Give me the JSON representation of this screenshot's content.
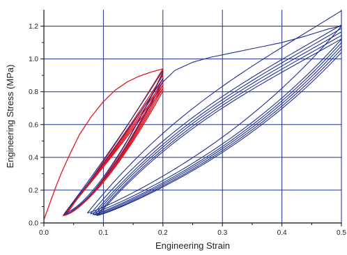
{
  "chart_data": {
    "type": "line",
    "title": "",
    "xlabel": "Engineering Strain",
    "ylabel": "Engineering Stress (MPa)",
    "xlim": [
      0.0,
      0.5
    ],
    "ylim": [
      0.0,
      1.3
    ],
    "x_ticks": [
      "0.0",
      "0.1",
      "0.2",
      "0.3",
      "0.4",
      "0.5"
    ],
    "y_ticks": [
      "0.0",
      "0.2",
      "0.4",
      "0.6",
      "0.8",
      "1.0",
      "1.2"
    ],
    "grid": true,
    "gridColor": "#1f2f8f",
    "series": [
      {
        "color": "#e8141c",
        "strokeWidth": 1.3,
        "kind": "loading-first",
        "points": [
          [
            0.0,
            0.02
          ],
          [
            0.01,
            0.12
          ],
          [
            0.02,
            0.22
          ],
          [
            0.03,
            0.31
          ],
          [
            0.045,
            0.43
          ],
          [
            0.06,
            0.54
          ],
          [
            0.08,
            0.65
          ],
          [
            0.1,
            0.74
          ],
          [
            0.12,
            0.81
          ],
          [
            0.14,
            0.86
          ],
          [
            0.16,
            0.895
          ],
          [
            0.18,
            0.92
          ],
          [
            0.2,
            0.94
          ]
        ]
      },
      {
        "color": "#e8141c",
        "strokeWidth": 1.3,
        "kind": "hysteresis",
        "loops": [
          {
            "peak": 0.94,
            "base": 0.055,
            "minX": 0.038
          },
          {
            "peak": 0.9,
            "base": 0.05,
            "minX": 0.036
          },
          {
            "peak": 0.88,
            "base": 0.048,
            "minX": 0.035
          },
          {
            "peak": 0.86,
            "base": 0.046,
            "minX": 0.034
          },
          {
            "peak": 0.84,
            "base": 0.045,
            "minX": 0.033
          },
          {
            "peak": 0.82,
            "base": 0.044,
            "minX": 0.032
          }
        ],
        "maxX": 0.2
      },
      {
        "color": "#1f2f8f",
        "strokeWidth": 1.1,
        "kind": "hysteresis",
        "loops": [
          {
            "peak": 0.93,
            "base": 0.06,
            "minX": 0.035
          },
          {
            "peak": 0.88,
            "base": 0.05,
            "minX": 0.033
          }
        ],
        "maxX": 0.2
      },
      {
        "color": "#1f2f8f",
        "strokeWidth": 1.1,
        "kind": "loading-second",
        "points": [
          [
            0.2,
            0.86
          ],
          [
            0.22,
            0.93
          ],
          [
            0.25,
            0.98
          ],
          [
            0.28,
            1.01
          ],
          [
            0.32,
            1.04
          ],
          [
            0.36,
            1.07
          ],
          [
            0.4,
            1.1
          ],
          [
            0.44,
            1.14
          ],
          [
            0.48,
            1.185
          ],
          [
            0.5,
            1.2
          ]
        ]
      },
      {
        "color": "#1f2f8f",
        "strokeWidth": 1.1,
        "kind": "large-hysteresis",
        "loops": [
          {
            "peak": 1.2,
            "base": 0.06,
            "minX": 0.073
          },
          {
            "peak": 1.12,
            "base": 0.055,
            "minX": 0.078
          },
          {
            "peak": 1.1,
            "base": 0.05,
            "minX": 0.082
          },
          {
            "peak": 1.08,
            "base": 0.048,
            "minX": 0.085
          },
          {
            "peak": 1.06,
            "base": 0.046,
            "minX": 0.088
          },
          {
            "peak": 1.04,
            "base": 0.045,
            "minX": 0.09
          }
        ],
        "maxX": 0.5
      }
    ]
  }
}
